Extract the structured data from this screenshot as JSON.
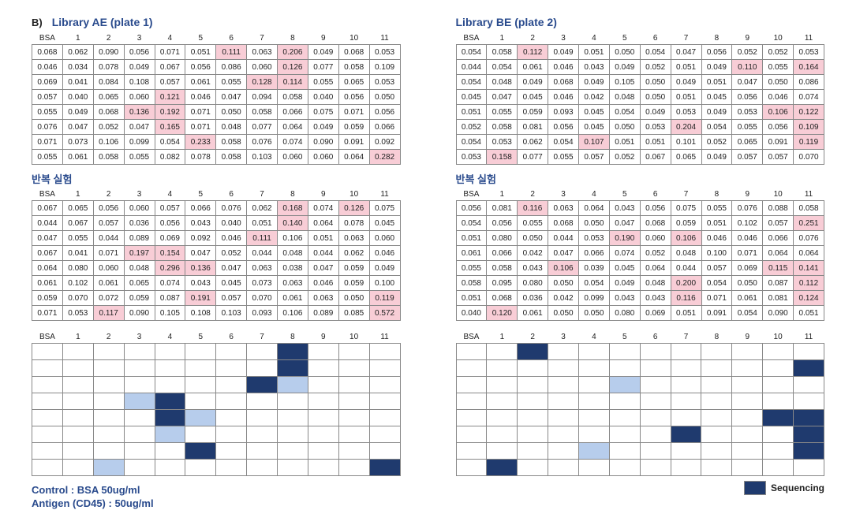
{
  "panel_label": "B)",
  "libAE_title": "Library AE (plate 1)",
  "libBE_title": "Library BE (plate 2)",
  "repeat_label": "반복 실험",
  "control_line1": "Control : BSA 50ug/ml",
  "control_line2": "Antigen (CD45) : 50ug/ml",
  "legend_label": "Sequencing",
  "headers": [
    "BSA",
    "1",
    "2",
    "3",
    "4",
    "5",
    "6",
    "7",
    "8",
    "9",
    "10",
    "11"
  ],
  "highlight_bg": "#f8cdd6",
  "dark_blue": "#1f3a6e",
  "light_blue": "#b7cdec",
  "ae1": {
    "rows": [
      [
        "0.068",
        "0.062",
        "0.090",
        "0.056",
        "0.071",
        "0.051",
        "0.111",
        "0.063",
        "0.206",
        "0.049",
        "0.068",
        "0.053"
      ],
      [
        "0.046",
        "0.034",
        "0.078",
        "0.049",
        "0.067",
        "0.056",
        "0.086",
        "0.060",
        "0.126",
        "0.077",
        "0.058",
        "0.109"
      ],
      [
        "0.069",
        "0.041",
        "0.084",
        "0.108",
        "0.057",
        "0.061",
        "0.055",
        "0.128",
        "0.114",
        "0.055",
        "0.065",
        "0.053"
      ],
      [
        "0.057",
        "0.040",
        "0.065",
        "0.060",
        "0.121",
        "0.046",
        "0.047",
        "0.094",
        "0.058",
        "0.040",
        "0.056",
        "0.050"
      ],
      [
        "0.055",
        "0.049",
        "0.068",
        "0.136",
        "0.192",
        "0.071",
        "0.050",
        "0.058",
        "0.066",
        "0.075",
        "0.071",
        "0.056"
      ],
      [
        "0.076",
        "0.047",
        "0.052",
        "0.047",
        "0.165",
        "0.071",
        "0.048",
        "0.077",
        "0.064",
        "0.049",
        "0.059",
        "0.066"
      ],
      [
        "0.071",
        "0.073",
        "0.106",
        "0.099",
        "0.054",
        "0.233",
        "0.058",
        "0.076",
        "0.074",
        "0.090",
        "0.091",
        "0.092"
      ],
      [
        "0.055",
        "0.061",
        "0.058",
        "0.055",
        "0.082",
        "0.078",
        "0.058",
        "0.103",
        "0.060",
        "0.060",
        "0.064",
        "0.282"
      ]
    ],
    "hl": [
      [
        0,
        6
      ],
      [
        0,
        8
      ],
      [
        1,
        8
      ],
      [
        2,
        7
      ],
      [
        2,
        8
      ],
      [
        3,
        4
      ],
      [
        4,
        3
      ],
      [
        4,
        4
      ],
      [
        5,
        4
      ],
      [
        6,
        5
      ],
      [
        7,
        11
      ]
    ]
  },
  "be1": {
    "rows": [
      [
        "0.054",
        "0.058",
        "0.112",
        "0.049",
        "0.051",
        "0.050",
        "0.054",
        "0.047",
        "0.056",
        "0.052",
        "0.052",
        "0.053"
      ],
      [
        "0.044",
        "0.054",
        "0.061",
        "0.046",
        "0.043",
        "0.049",
        "0.052",
        "0.051",
        "0.049",
        "0.110",
        "0.055",
        "0.164"
      ],
      [
        "0.054",
        "0.048",
        "0.049",
        "0.068",
        "0.049",
        "0.105",
        "0.050",
        "0.049",
        "0.051",
        "0.047",
        "0.050",
        "0.086"
      ],
      [
        "0.045",
        "0.047",
        "0.045",
        "0.046",
        "0.042",
        "0.048",
        "0.050",
        "0.051",
        "0.045",
        "0.056",
        "0.046",
        "0.074"
      ],
      [
        "0.051",
        "0.055",
        "0.059",
        "0.093",
        "0.045",
        "0.054",
        "0.049",
        "0.053",
        "0.049",
        "0.053",
        "0.106",
        "0.122"
      ],
      [
        "0.052",
        "0.058",
        "0.081",
        "0.056",
        "0.045",
        "0.050",
        "0.053",
        "0.204",
        "0.054",
        "0.055",
        "0.056",
        "0.109"
      ],
      [
        "0.054",
        "0.053",
        "0.062",
        "0.054",
        "0.107",
        "0.051",
        "0.051",
        "0.101",
        "0.052",
        "0.065",
        "0.091",
        "0.119"
      ],
      [
        "0.053",
        "0.158",
        "0.077",
        "0.055",
        "0.057",
        "0.052",
        "0.067",
        "0.065",
        "0.049",
        "0.057",
        "0.057",
        "0.070"
      ]
    ],
    "hl": [
      [
        0,
        2
      ],
      [
        1,
        9
      ],
      [
        1,
        11
      ],
      [
        4,
        10
      ],
      [
        4,
        11
      ],
      [
        5,
        7
      ],
      [
        5,
        11
      ],
      [
        6,
        4
      ],
      [
        6,
        11
      ],
      [
        7,
        1
      ]
    ]
  },
  "ae2": {
    "rows": [
      [
        "0.067",
        "0.065",
        "0.056",
        "0.060",
        "0.057",
        "0.066",
        "0.076",
        "0.062",
        "0.168",
        "0.074",
        "0.126",
        "0.075"
      ],
      [
        "0.044",
        "0.067",
        "0.057",
        "0.036",
        "0.056",
        "0.043",
        "0.040",
        "0.051",
        "0.140",
        "0.064",
        "0.078",
        "0.045"
      ],
      [
        "0.047",
        "0.055",
        "0.044",
        "0.089",
        "0.069",
        "0.092",
        "0.046",
        "0.111",
        "0.106",
        "0.051",
        "0.063",
        "0.060"
      ],
      [
        "0.067",
        "0.041",
        "0.071",
        "0.197",
        "0.154",
        "0.047",
        "0.052",
        "0.044",
        "0.048",
        "0.044",
        "0.062",
        "0.046"
      ],
      [
        "0.064",
        "0.080",
        "0.060",
        "0.048",
        "0.296",
        "0.136",
        "0.047",
        "0.063",
        "0.038",
        "0.047",
        "0.059",
        "0.049"
      ],
      [
        "0.061",
        "0.102",
        "0.061",
        "0.065",
        "0.074",
        "0.043",
        "0.045",
        "0.073",
        "0.063",
        "0.046",
        "0.059",
        "0.100"
      ],
      [
        "0.059",
        "0.070",
        "0.072",
        "0.059",
        "0.087",
        "0.191",
        "0.057",
        "0.070",
        "0.061",
        "0.063",
        "0.050",
        "0.119"
      ],
      [
        "0.071",
        "0.053",
        "0.117",
        "0.090",
        "0.105",
        "0.108",
        "0.103",
        "0.093",
        "0.106",
        "0.089",
        "0.085",
        "0.572"
      ]
    ],
    "hl": [
      [
        0,
        8
      ],
      [
        0,
        10
      ],
      [
        1,
        8
      ],
      [
        2,
        7
      ],
      [
        3,
        3
      ],
      [
        3,
        4
      ],
      [
        4,
        4
      ],
      [
        4,
        5
      ],
      [
        6,
        5
      ],
      [
        6,
        11
      ],
      [
        7,
        2
      ],
      [
        7,
        11
      ]
    ]
  },
  "be2": {
    "rows": [
      [
        "0.056",
        "0.081",
        "0.116",
        "0.063",
        "0.064",
        "0.043",
        "0.056",
        "0.075",
        "0.055",
        "0.076",
        "0.088",
        "0.058"
      ],
      [
        "0.054",
        "0.056",
        "0.055",
        "0.068",
        "0.050",
        "0.047",
        "0.068",
        "0.059",
        "0.051",
        "0.102",
        "0.057",
        "0.251"
      ],
      [
        "0.051",
        "0.080",
        "0.050",
        "0.044",
        "0.053",
        "0.190",
        "0.060",
        "0.106",
        "0.046",
        "0.046",
        "0.066",
        "0.076"
      ],
      [
        "0.061",
        "0.066",
        "0.042",
        "0.047",
        "0.066",
        "0.074",
        "0.052",
        "0.048",
        "0.100",
        "0.071",
        "0.064",
        "0.064"
      ],
      [
        "0.055",
        "0.058",
        "0.043",
        "0.106",
        "0.039",
        "0.045",
        "0.064",
        "0.044",
        "0.057",
        "0.069",
        "0.115",
        "0.141"
      ],
      [
        "0.058",
        "0.095",
        "0.080",
        "0.050",
        "0.054",
        "0.049",
        "0.048",
        "0.200",
        "0.054",
        "0.050",
        "0.087",
        "0.112"
      ],
      [
        "0.051",
        "0.068",
        "0.036",
        "0.042",
        "0.099",
        "0.043",
        "0.043",
        "0.116",
        "0.071",
        "0.061",
        "0.081",
        "0.124"
      ],
      [
        "0.040",
        "0.120",
        "0.061",
        "0.050",
        "0.050",
        "0.080",
        "0.069",
        "0.051",
        "0.091",
        "0.054",
        "0.090",
        "0.051"
      ]
    ],
    "hl": [
      [
        0,
        2
      ],
      [
        1,
        11
      ],
      [
        2,
        5
      ],
      [
        2,
        7
      ],
      [
        4,
        3
      ],
      [
        4,
        10
      ],
      [
        4,
        11
      ],
      [
        5,
        7
      ],
      [
        5,
        11
      ],
      [
        6,
        7
      ],
      [
        6,
        11
      ],
      [
        7,
        1
      ]
    ]
  },
  "ae_color": [
    [
      "",
      "",
      "",
      "",
      "",
      "",
      "",
      "",
      "d",
      "",
      "",
      ""
    ],
    [
      "",
      "",
      "",
      "",
      "",
      "",
      "",
      "",
      "d",
      "",
      "",
      ""
    ],
    [
      "",
      "",
      "",
      "",
      "",
      "",
      "",
      "d",
      "l",
      "",
      "",
      ""
    ],
    [
      "",
      "",
      "",
      "l",
      "d",
      "",
      "",
      "",
      "",
      "",
      "",
      ""
    ],
    [
      "",
      "",
      "",
      "",
      "d",
      "l",
      "",
      "",
      "",
      "",
      "",
      ""
    ],
    [
      "",
      "",
      "",
      "",
      "l",
      "",
      "",
      "",
      "",
      "",
      "",
      ""
    ],
    [
      "",
      "",
      "",
      "",
      "",
      "d",
      "",
      "",
      "",
      "",
      "",
      ""
    ],
    [
      "",
      "",
      "l",
      "",
      "",
      "",
      "",
      "",
      "",
      "",
      "",
      "d"
    ]
  ],
  "be_color": [
    [
      "",
      "",
      "d",
      "",
      "",
      "",
      "",
      "",
      "",
      "",
      "",
      ""
    ],
    [
      "",
      "",
      "",
      "",
      "",
      "",
      "",
      "",
      "",
      "",
      "",
      "d"
    ],
    [
      "",
      "",
      "",
      "",
      "",
      "l",
      "",
      "",
      "",
      "",
      "",
      ""
    ],
    [
      "",
      "",
      "",
      "",
      "",
      "",
      "",
      "",
      "",
      "",
      "",
      ""
    ],
    [
      "",
      "",
      "",
      "",
      "",
      "",
      "",
      "",
      "",
      "",
      "d",
      "d"
    ],
    [
      "",
      "",
      "",
      "",
      "",
      "",
      "",
      "d",
      "",
      "",
      "",
      "d"
    ],
    [
      "",
      "",
      "",
      "",
      "l",
      "",
      "",
      "",
      "",
      "",
      "",
      "d"
    ],
    [
      "",
      "d",
      "",
      "",
      "",
      "",
      "",
      "",
      "",
      "",
      "",
      ""
    ]
  ]
}
